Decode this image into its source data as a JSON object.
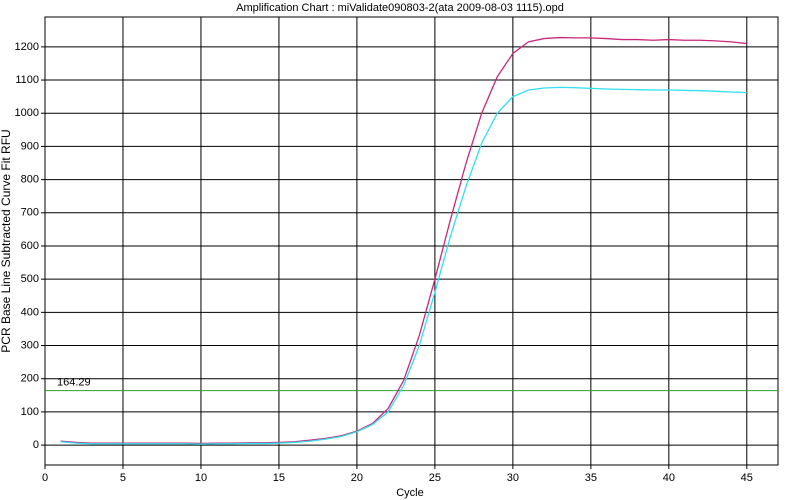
{
  "chart_data": {
    "type": "line",
    "title": "Amplification Chart : miValidate090803-2(ata 2009-08-03 1115).opd",
    "x_label": "Cycle",
    "y_label": "PCR Base Line Subtracted Curve Fit RFU",
    "x": [
      1,
      2,
      3,
      4,
      5,
      6,
      7,
      8,
      9,
      10,
      11,
      12,
      13,
      14,
      15,
      16,
      17,
      18,
      19,
      20,
      21,
      22,
      23,
      24,
      25,
      26,
      27,
      28,
      29,
      30,
      31,
      32,
      33,
      34,
      35,
      36,
      37,
      38,
      39,
      40,
      41,
      42,
      43,
      44,
      45
    ],
    "series": [
      {
        "color": "#c8287a",
        "values": [
          12,
          8,
          6,
          6,
          6,
          6,
          6,
          6,
          6,
          5,
          6,
          6,
          7,
          7,
          8,
          10,
          15,
          20,
          28,
          42,
          65,
          110,
          195,
          330,
          500,
          680,
          850,
          1000,
          1110,
          1180,
          1215,
          1225,
          1228,
          1227,
          1227,
          1225,
          1222,
          1222,
          1220,
          1222,
          1220,
          1220,
          1218,
          1215,
          1210
        ]
      },
      {
        "color": "#30e0f0",
        "values": [
          10,
          6,
          4,
          4,
          4,
          4,
          4,
          4,
          4,
          3,
          4,
          4,
          5,
          5,
          6,
          8,
          12,
          18,
          26,
          40,
          62,
          100,
          180,
          300,
          460,
          630,
          780,
          910,
          1000,
          1050,
          1070,
          1076,
          1078,
          1077,
          1075,
          1073,
          1072,
          1071,
          1070,
          1070,
          1069,
          1068,
          1066,
          1064,
          1062
        ]
      }
    ],
    "threshold": 164.29,
    "threshold_color": "#2aa02a",
    "xlim": [
      0,
      47
    ],
    "ylim": [
      -60,
      1290
    ],
    "xticks": [
      0,
      5,
      10,
      15,
      20,
      25,
      30,
      35,
      40,
      45
    ],
    "yticks": [
      0,
      100,
      200,
      300,
      400,
      500,
      600,
      700,
      800,
      900,
      1000,
      1100,
      1200
    ],
    "grid": true
  }
}
